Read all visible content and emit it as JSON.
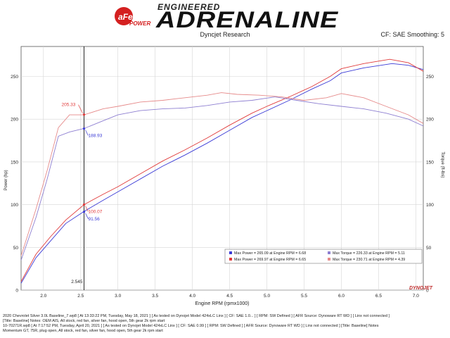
{
  "header": {
    "brand_top": "ENGINEERED",
    "brand_main": "ADRENALINE",
    "logo_text": "aFe",
    "logo_sub": "POWER",
    "subtitle": "Dyncjet Research",
    "cf_info": "CF: SAE Smoothing: 5"
  },
  "chart_data": {
    "type": "line",
    "xlabel": "Engine RPM (rpmx1000)",
    "ylabel_left": "Power (hp)",
    "ylabel_right": "Torque (ft-lbs)",
    "xlim": [
      1.7,
      7.1
    ],
    "ylim": [
      0,
      285
    ],
    "x_ticks": [
      2.0,
      2.5,
      3.0,
      3.5,
      4.0,
      4.5,
      5.0,
      5.5,
      6.0,
      6.5,
      7.0
    ],
    "x_tick_labels": [
      "2.0",
      "2.5",
      "3.0",
      "3.5",
      "4.0",
      "4.5",
      "5.0",
      "5.5",
      "6.0",
      "6.5",
      "7.0"
    ],
    "y_ticks": [
      0,
      50,
      100,
      150,
      200,
      250
    ],
    "y_tick_labels": [
      "0",
      "50",
      "100",
      "150",
      "200",
      "250"
    ],
    "grid": true,
    "cursor": {
      "x": 2.545,
      "label": "2.545"
    },
    "series": [
      {
        "name": "Max Power",
        "metric": "power",
        "color": "#3b3bd6",
        "x": [
          1.7,
          1.9,
          2.1,
          2.3,
          2.545,
          2.8,
          3.0,
          3.3,
          3.6,
          3.9,
          4.2,
          4.5,
          4.8,
          5.0,
          5.3,
          5.6,
          5.85,
          6.0,
          6.3,
          6.68,
          6.9,
          7.1
        ],
        "y": [
          8,
          38,
          58,
          78,
          92,
          105,
          115,
          130,
          145,
          158,
          172,
          187,
          202,
          210,
          222,
          235,
          245,
          254,
          260,
          265,
          263,
          258
        ]
      },
      {
        "name": "Max Power",
        "metric": "power",
        "color": "#e03a3a",
        "x": [
          1.7,
          1.9,
          2.1,
          2.3,
          2.545,
          2.8,
          3.0,
          3.3,
          3.6,
          3.9,
          4.2,
          4.5,
          4.8,
          5.0,
          5.3,
          5.6,
          5.85,
          6.0,
          6.3,
          6.65,
          6.9,
          7.1
        ],
        "y": [
          10,
          42,
          63,
          82,
          100,
          112,
          121,
          136,
          151,
          164,
          178,
          193,
          207,
          215,
          226,
          238,
          250,
          259,
          265,
          270,
          266,
          256
        ]
      },
      {
        "name": "Max Torque",
        "metric": "torque",
        "color": "#8e7fd1",
        "x": [
          1.7,
          1.9,
          2.05,
          2.2,
          2.35,
          2.545,
          2.8,
          3.0,
          3.3,
          3.6,
          3.9,
          4.2,
          4.5,
          4.8,
          5.11,
          5.4,
          5.7,
          6.0,
          6.3,
          6.6,
          6.9,
          7.1
        ],
        "y": [
          35,
          85,
          130,
          180,
          185,
          189,
          198,
          205,
          210,
          212,
          213,
          216,
          220,
          222,
          226,
          222,
          218,
          215,
          212,
          207,
          200,
          192
        ]
      },
      {
        "name": "Max Torque",
        "metric": "torque",
        "color": "#e68a8a",
        "x": [
          1.7,
          1.9,
          2.05,
          2.2,
          2.35,
          2.545,
          2.8,
          3.0,
          3.3,
          3.6,
          3.9,
          4.2,
          4.39,
          4.6,
          4.9,
          5.2,
          5.5,
          5.8,
          6.0,
          6.3,
          6.6,
          6.9,
          7.1
        ],
        "y": [
          40,
          95,
          140,
          190,
          205,
          205,
          212,
          215,
          220,
          222,
          225,
          228,
          231,
          229,
          228,
          226,
          222,
          225,
          230,
          225,
          215,
          205,
          195
        ]
      }
    ],
    "annotations": [
      {
        "text": "205.33",
        "x": 2.545,
        "y": 205.33,
        "color": "#e03a3a",
        "side": "left"
      },
      {
        "text": "188.93",
        "x": 2.545,
        "y": 188.93,
        "color": "#3b3bd6",
        "side": "right"
      },
      {
        "text": "100.07",
        "x": 2.545,
        "y": 100.07,
        "color": "#e03a3a",
        "side": "right"
      },
      {
        "text": "91.56",
        "x": 2.545,
        "y": 91.56,
        "color": "#3b3bd6",
        "side": "right"
      }
    ],
    "legend": {
      "placement": "bottom-right",
      "rows": [
        {
          "color": "#3b3bd6",
          "text": "Max Power = 265.09 at Engine RPM = 6.68"
        },
        {
          "color": "#8e7fd1",
          "text": "Max Torque = 226.33 at Engine RPM = 5.11"
        },
        {
          "color": "#e03a3a",
          "text": "Max Power = 269.97 at Engine RPM = 6.65"
        },
        {
          "color": "#e68a8a",
          "text": "Max Torque = 230.71 at Engine RPM = 4.39"
        }
      ]
    },
    "watermark": "DYNOJET"
  },
  "footer": {
    "lines": [
      "2020 Chevrolet Silver 3.0L Baseline_7.wp8 [ At 13:33:22 PM, Tuesday, May 18, 2021 ] [ As tested on Dynojet Model 424xLC Linx ] [ CF: SAE 1.0... ] [ RPM: SW Defined ] [ AFR Source: Dynoware RT WD ] [ Linx not connected ]",
      "[Title: Baseline] Notes: OEM AIS, All stock, red fan, silver fan, hood open, 5th gear 2k rpm start",
      "10-70271R.wp8 [ At 7:17:52 PM, Tuesday, April 20, 2021 ] [ As tested on Dynojet Model 424xLC Linx ] [ CF: SAE 0.99 ] [ RPM: SW Defined ] [ AFR Source: Dynoware RT WD ] [ Linx not connected ] [Title: Baseline] Notes",
      "Momentum GT, 75R, plug open, All stock, red fan, silver fan, hood open, 5th gear 2k rpm start"
    ]
  }
}
